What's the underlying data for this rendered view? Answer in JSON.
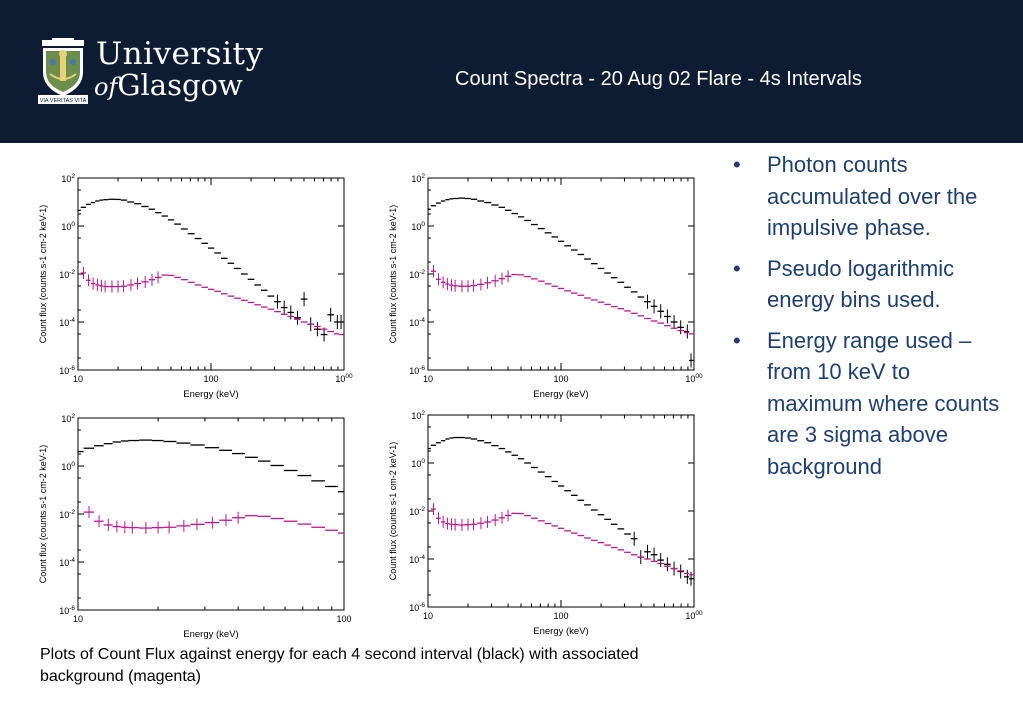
{
  "header": {
    "logo_line1": "University",
    "logo_of": "of",
    "logo_line2": "Glasgow",
    "logo_motto": "VIA VERITAS VITA",
    "title": "Count Spectra - 20 Aug 02 Flare - 4s Intervals",
    "background_color": "#0d1c33"
  },
  "bullets": [
    {
      "marker": "•",
      "text": "Photon counts accumulated over the impulsive phase."
    },
    {
      "marker": "•",
      "text": "Pseudo logarithmic energy bins used."
    },
    {
      "marker": "•",
      "text": "Energy range used – from 10 keV to maximum where counts are 3 sigma above background"
    }
  ],
  "bullet_color": "#1e3f73",
  "caption": "Plots of Count Flux against energy for each 4 second interval (black) with associated background (magenta)",
  "chart_data": [
    {
      "type": "scatter",
      "xlabel": "Energy (keV)",
      "ylabel": "Count flux (counts s-1 cm-2 keV-1)",
      "xscale": "log",
      "yscale": "log",
      "xlim": [
        10,
        1000
      ],
      "ylim": [
        1e-06,
        100
      ],
      "xticks": [
        "10",
        "100",
        "1000"
      ],
      "yticks": [
        "10-6",
        "10-4",
        "10-2",
        "100",
        "102"
      ],
      "series": [
        {
          "color": "#000000",
          "x": [
            10,
            11,
            12,
            13,
            14,
            15,
            16,
            18,
            20,
            22,
            25,
            28,
            32,
            36,
            40,
            45,
            50,
            56,
            63,
            71,
            80,
            90,
            100,
            112,
            126,
            141,
            158,
            178,
            200,
            224,
            251,
            282,
            316,
            355,
            398,
            447,
            501,
            562,
            631,
            708,
            794,
            891,
            950
          ],
          "y": [
            4.5,
            6,
            8,
            9.5,
            11,
            12,
            12.5,
            13,
            12.8,
            12,
            10,
            8.5,
            6.5,
            5,
            3.6,
            2.6,
            1.8,
            1.2,
            0.75,
            0.48,
            0.3,
            0.19,
            0.12,
            0.075,
            0.045,
            0.028,
            0.017,
            0.01,
            0.006,
            0.0035,
            0.0021,
            0.0012,
            0.0007,
            0.0004,
            0.00025,
            0.00015,
            0.0009,
            8e-05,
            5e-05,
            3e-05,
            0.0002,
            0.0001,
            0.0001
          ]
        },
        {
          "color": "#c0168c",
          "x": [
            11,
            12,
            13,
            14,
            15,
            16,
            18,
            20,
            22,
            25,
            28,
            32,
            36,
            40,
            45,
            50,
            56,
            63,
            71,
            80,
            90,
            100,
            112,
            126,
            141,
            158,
            178,
            200,
            224,
            251,
            282,
            316,
            355,
            398,
            447,
            501,
            562,
            631,
            708,
            794,
            891,
            950
          ],
          "y": [
            0.011,
            0.0055,
            0.004,
            0.0035,
            0.0032,
            0.003,
            0.003,
            0.003,
            0.0031,
            0.0035,
            0.004,
            0.0047,
            0.0058,
            0.0072,
            0.009,
            0.0087,
            0.0072,
            0.0058,
            0.0045,
            0.0035,
            0.0028,
            0.0023,
            0.0019,
            0.0015,
            0.0012,
            0.00098,
            0.0008,
            0.00065,
            0.00052,
            0.00042,
            0.00034,
            0.00027,
            0.00021,
            0.00017,
            0.00013,
            0.0001,
            8e-05,
            6.5e-05,
            5e-05,
            4e-05,
            3.2e-05,
            3e-05
          ]
        }
      ]
    },
    {
      "type": "scatter",
      "xlabel": "Energy (keV)",
      "ylabel": "Count flux (counts s-1 cm-2 keV-1)",
      "xscale": "log",
      "yscale": "log",
      "xlim": [
        10,
        1000
      ],
      "ylim": [
        1e-06,
        100
      ],
      "xticks": [
        "10",
        "100",
        "1000"
      ],
      "yticks": [
        "10-6",
        "10-4",
        "10-2",
        "100",
        "102"
      ],
      "series": [
        {
          "color": "#000000",
          "x": [
            10,
            11,
            12,
            13,
            14,
            15,
            16,
            18,
            20,
            22,
            25,
            28,
            32,
            36,
            40,
            45,
            50,
            56,
            63,
            71,
            80,
            90,
            100,
            112,
            126,
            141,
            158,
            178,
            200,
            224,
            251,
            282,
            316,
            355,
            398,
            447,
            501,
            562,
            631,
            708,
            794,
            891,
            950
          ],
          "y": [
            5,
            7,
            9,
            11,
            12.5,
            13.5,
            14,
            14.5,
            14,
            13,
            11,
            9.5,
            7.5,
            6,
            4.5,
            3.3,
            2.4,
            1.7,
            1.15,
            0.78,
            0.52,
            0.35,
            0.23,
            0.15,
            0.1,
            0.065,
            0.042,
            0.027,
            0.017,
            0.011,
            0.007,
            0.0045,
            0.0028,
            0.0018,
            0.0011,
            0.0007,
            0.00045,
            0.00028,
            0.00017,
            0.0001,
            6e-05,
            4e-05,
            2.5e-06
          ]
        },
        {
          "color": "#c0168c",
          "x": [
            11,
            12,
            13,
            14,
            15,
            16,
            18,
            20,
            22,
            25,
            28,
            32,
            36,
            40,
            45,
            50,
            56,
            63,
            71,
            80,
            90,
            100,
            112,
            126,
            141,
            158,
            178,
            200,
            224,
            251,
            282,
            316,
            355,
            398,
            447,
            501,
            562,
            631,
            708,
            794,
            891,
            950
          ],
          "y": [
            0.013,
            0.006,
            0.0045,
            0.0038,
            0.0034,
            0.0032,
            0.0031,
            0.0031,
            0.0033,
            0.0037,
            0.0043,
            0.0052,
            0.0064,
            0.008,
            0.0095,
            0.0092,
            0.0078,
            0.0063,
            0.005,
            0.0039,
            0.0031,
            0.0025,
            0.002,
            0.0016,
            0.0013,
            0.001,
            0.00083,
            0.00067,
            0.00054,
            0.00044,
            0.00036,
            0.00029,
            0.00023,
            0.00018,
            0.00014,
            0.00011,
            9e-05,
            7e-05,
            5.5e-05,
            4.4e-05,
            3.6e-05,
            3.2e-05
          ]
        }
      ]
    },
    {
      "type": "scatter",
      "xlabel": "Energy (keV)",
      "ylabel": "Count flux (counts s-1 cm-2 keV-1)",
      "xscale": "log",
      "yscale": "log",
      "xlim": [
        10,
        100
      ],
      "ylim": [
        1e-06,
        100
      ],
      "xticks": [
        "10",
        "100"
      ],
      "yticks": [
        "10-6",
        "10-4",
        "10-2",
        "100",
        "102"
      ],
      "series": [
        {
          "color": "#000000",
          "x": [
            10,
            11,
            12,
            13,
            14,
            15,
            16,
            18,
            20,
            22,
            25,
            28,
            32,
            36,
            40,
            45,
            50,
            56,
            63,
            71,
            80,
            90,
            100
          ],
          "y": [
            4,
            5.5,
            7,
            8.5,
            10,
            11,
            11.5,
            12,
            11.5,
            10.5,
            9,
            7.5,
            5.8,
            4.5,
            3.3,
            2.3,
            1.6,
            1.05,
            0.65,
            0.4,
            0.24,
            0.14,
            0.085
          ]
        },
        {
          "color": "#c0168c",
          "x": [
            11,
            12,
            13,
            14,
            15,
            16,
            18,
            20,
            22,
            25,
            28,
            32,
            36,
            40,
            45,
            50,
            56,
            63,
            71,
            80,
            90,
            100
          ],
          "y": [
            0.012,
            0.005,
            0.0035,
            0.003,
            0.0028,
            0.0027,
            0.0026,
            0.0027,
            0.0028,
            0.0032,
            0.0037,
            0.0044,
            0.0055,
            0.007,
            0.0085,
            0.008,
            0.0065,
            0.005,
            0.0038,
            0.0028,
            0.0021,
            0.0016
          ]
        }
      ]
    },
    {
      "type": "scatter",
      "xlabel": "Energy (keV)",
      "ylabel": "Count flux (counts s-1 cm-2 keV-1)",
      "xscale": "log",
      "yscale": "log",
      "xlim": [
        10,
        1000
      ],
      "ylim": [
        1e-06,
        100
      ],
      "xticks": [
        "10",
        "100",
        "1000"
      ],
      "yticks": [
        "10-6",
        "10-4",
        "10-2",
        "100",
        "102"
      ],
      "series": [
        {
          "color": "#000000",
          "x": [
            10,
            11,
            12,
            13,
            14,
            15,
            16,
            18,
            20,
            22,
            25,
            28,
            32,
            36,
            40,
            45,
            50,
            56,
            63,
            71,
            80,
            90,
            100,
            112,
            126,
            141,
            158,
            178,
            200,
            224,
            251,
            282,
            316,
            355,
            398,
            447,
            501,
            562,
            631,
            708,
            794,
            891,
            950
          ],
          "y": [
            4,
            5.5,
            7,
            8.5,
            10,
            11,
            11.5,
            11.5,
            11,
            10,
            8.5,
            7,
            5.3,
            4,
            2.9,
            2.1,
            1.5,
            1,
            0.65,
            0.42,
            0.27,
            0.17,
            0.11,
            0.07,
            0.045,
            0.028,
            0.018,
            0.011,
            0.007,
            0.0045,
            0.0028,
            0.0018,
            0.0011,
            0.0007,
            0.00012,
            0.0002,
            0.00015,
            9e-05,
            6e-05,
            4e-05,
            3e-05,
            1.8e-05,
            1.5e-05
          ]
        },
        {
          "color": "#c0168c",
          "x": [
            11,
            12,
            13,
            14,
            15,
            16,
            18,
            20,
            22,
            25,
            28,
            32,
            36,
            40,
            45,
            50,
            56,
            63,
            71,
            80,
            90,
            100,
            112,
            126,
            141,
            158,
            178,
            200,
            224,
            251,
            282,
            316,
            355,
            398,
            447,
            501,
            562,
            631,
            708,
            794,
            891,
            950
          ],
          "y": [
            0.012,
            0.005,
            0.0035,
            0.003,
            0.0028,
            0.0027,
            0.0026,
            0.0027,
            0.0028,
            0.0031,
            0.0035,
            0.0042,
            0.0052,
            0.0065,
            0.008,
            0.0078,
            0.0064,
            0.005,
            0.0039,
            0.003,
            0.0024,
            0.0019,
            0.0015,
            0.0012,
            0.00095,
            0.00075,
            0.0006,
            0.00048,
            0.00038,
            0.0003,
            0.00024,
            0.00019,
            0.00015,
            0.00012,
            0.0001,
            8e-05,
            6.5e-05,
            5e-05,
            4e-05,
            3.2e-05,
            2.5e-05,
            2.2e-05
          ]
        }
      ]
    }
  ]
}
